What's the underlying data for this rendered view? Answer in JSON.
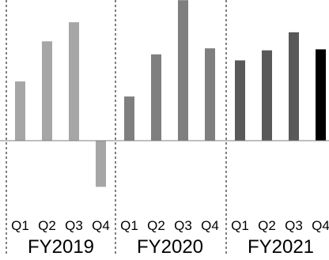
{
  "chart_data": {
    "type": "bar",
    "groups": [
      {
        "label": "FY2019",
        "categories": [
          "Q1",
          "Q2",
          "Q3",
          "Q4"
        ],
        "values": [
          59,
          99,
          118,
          -46
        ],
        "colors": [
          "#a6a6a6",
          "#a6a6a6",
          "#a6a6a6",
          "#a6a6a6"
        ]
      },
      {
        "label": "FY2020",
        "categories": [
          "Q1",
          "Q2",
          "Q3",
          "Q4"
        ],
        "values": [
          44,
          86,
          140,
          92
        ],
        "colors": [
          "#7f7f7f",
          "#7f7f7f",
          "#7f7f7f",
          "#7f7f7f"
        ]
      },
      {
        "label": "FY2021",
        "categories": [
          "Q1",
          "Q2",
          "Q3",
          "Q4"
        ],
        "values": [
          80,
          90,
          108,
          91
        ],
        "colors": [
          "#595959",
          "#595959",
          "#595959",
          "#000000"
        ]
      }
    ],
    "title": "",
    "xlabel": "",
    "ylabel": "",
    "ylim": [
      -100,
      140
    ],
    "grid": false,
    "legend": "none",
    "baseline_color": "#7f7f7f",
    "separator_style": "dashed"
  }
}
